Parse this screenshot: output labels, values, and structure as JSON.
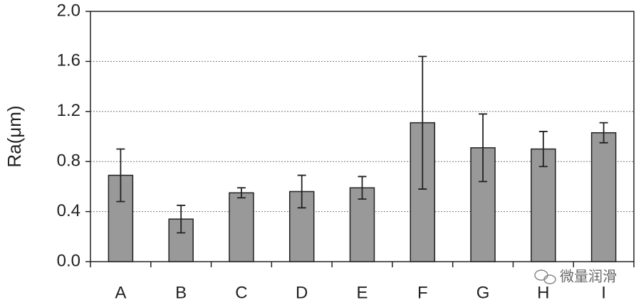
{
  "chart_data": {
    "type": "bar",
    "y_label": "Ra(μm)",
    "categories": [
      "A",
      "B",
      "C",
      "D",
      "E",
      "F",
      "G",
      "H",
      "I"
    ],
    "values": [
      0.69,
      0.34,
      0.55,
      0.56,
      0.59,
      1.11,
      0.91,
      0.9,
      1.03
    ],
    "errors": [
      0.21,
      0.11,
      0.04,
      0.13,
      0.09,
      0.53,
      0.27,
      0.14,
      0.08
    ],
    "color": "#999999",
    "ylim": [
      0,
      2
    ],
    "yticks": [
      {
        "value": 0,
        "label": "0.0"
      },
      {
        "value": 0.4,
        "label": "0.4"
      },
      {
        "value": 0.8,
        "label": "0.8"
      },
      {
        "value": 1.2,
        "label": "1.2"
      },
      {
        "value": 1.6,
        "label": "1.6"
      },
      {
        "value": 2,
        "label": "2.0"
      }
    ],
    "grid": true,
    "annotation": "微量润滑"
  }
}
